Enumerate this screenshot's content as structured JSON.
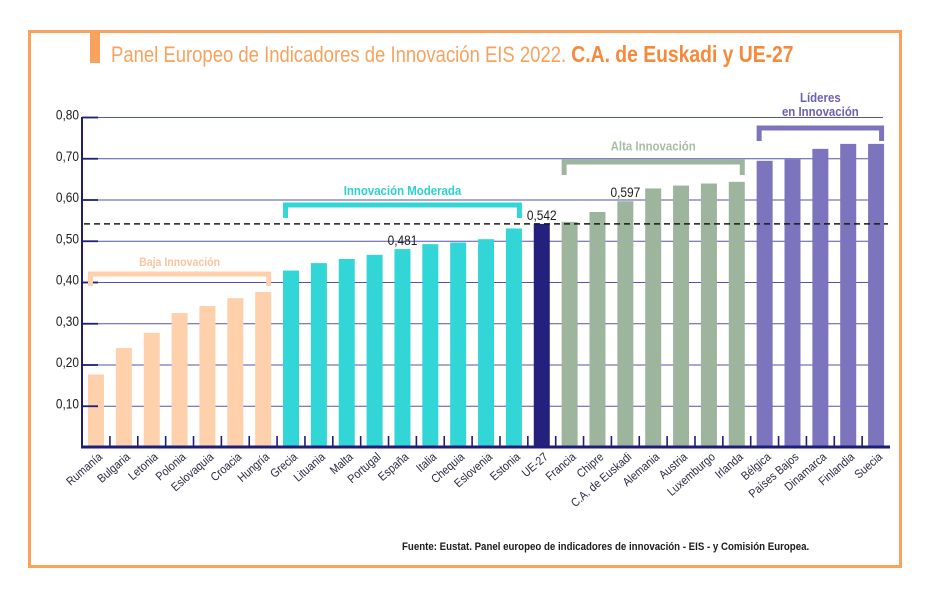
{
  "title": {
    "regular": "Panel Europeo de Indicadores de Innovación EIS 2022.",
    "bold": "C.A. de Euskadi y UE-27"
  },
  "source": "Fuente: Eustat. Panel europeo de indicadores de innovación - EIS - y Comisión Europea.",
  "colors": {
    "frame": "#F9A25E",
    "title_bold": "#F7893A",
    "gridline": "#5353AE",
    "axis": "#1E1E78",
    "reference_line": "#1a1a1a",
    "text": "#1d1d1d"
  },
  "chart_data": {
    "type": "bar",
    "title": "Panel Europeo de Indicadores de Innovación EIS 2022. C.A. de Euskadi y UE-27",
    "xlabel": "",
    "ylabel": "",
    "ylim": [
      0,
      0.8
    ],
    "grid": true,
    "legend": "none",
    "yticks": [
      0.1,
      0.2,
      0.3,
      0.4,
      0.5,
      0.6,
      0.7,
      0.8
    ],
    "ytick_labels": [
      "0,10",
      "0,20",
      "0,30",
      "0,40",
      "0,50",
      "0,60",
      "0,70",
      "0,80"
    ],
    "categories": [
      "Rumanía",
      "Bulgaria",
      "Letonia",
      "Polonia",
      "Eslovaquia",
      "Croacia",
      "Hungría",
      "Grecia",
      "Lituania",
      "Malta",
      "Portugal",
      "España",
      "Italia",
      "Chequia",
      "Eslovenia",
      "Estonia",
      "UE-27",
      "Francia",
      "Chipre",
      "C.A. de Euskadi",
      "Alemania",
      "Austria",
      "Luxemburgo",
      "Irlanda",
      "Bélgica",
      "Países Bajos",
      "Dinamarca",
      "Finlandia",
      "Suecia"
    ],
    "values": [
      0.177,
      0.241,
      0.278,
      0.326,
      0.343,
      0.362,
      0.377,
      0.429,
      0.447,
      0.457,
      0.467,
      0.481,
      0.493,
      0.497,
      0.505,
      0.531,
      0.542,
      0.547,
      0.571,
      0.597,
      0.628,
      0.635,
      0.64,
      0.644,
      0.695,
      0.699,
      0.724,
      0.736,
      0.736
    ],
    "groups": [
      {
        "name": "Baja Innovación",
        "label_lines": [
          "Baja Innovación"
        ],
        "color": "#FFD0AC",
        "label_color": "#FCC49A",
        "members": [
          "Rumanía",
          "Bulgaria",
          "Letonia",
          "Polonia",
          "Eslovaquia",
          "Croacia",
          "Hungría"
        ]
      },
      {
        "name": "Innovación Moderada",
        "label_lines": [
          "Innovación Moderada"
        ],
        "color": "#33D6D6",
        "label_color": "#2DD1D1",
        "members": [
          "Grecia",
          "Lituania",
          "Malta",
          "Portugal",
          "España",
          "Italia",
          "Chequia",
          "Eslovenia",
          "Estonia"
        ]
      },
      {
        "name": "UE-27",
        "label_lines": [],
        "color": "#23217D",
        "label_color": "#23217D",
        "members": [
          "UE-27"
        ]
      },
      {
        "name": "Alta Innovación",
        "label_lines": [
          "Alta Innovación"
        ],
        "color": "#9DB59C",
        "label_color": "#A6BFA3",
        "members": [
          "Francia",
          "Chipre",
          "C.A. de Euskadi",
          "Alemania",
          "Austria",
          "Luxemburgo",
          "Irlanda"
        ]
      },
      {
        "name": "Líderes en Innovación",
        "label_lines": [
          "Líderes",
          "en Innovación"
        ],
        "color": "#7C74BD",
        "label_color": "#6B61B4",
        "members": [
          "Bélgica",
          "Países Bajos",
          "Dinamarca",
          "Finlandia",
          "Suecia"
        ]
      }
    ],
    "reference_line": {
      "category": "UE-27",
      "value": 0.542,
      "style": "dashed"
    },
    "annotations": [
      {
        "category": "España",
        "text": "0,481"
      },
      {
        "category": "UE-27",
        "text": "0,542"
      },
      {
        "category": "C.A. de Euskadi",
        "text": "0,597"
      }
    ]
  }
}
